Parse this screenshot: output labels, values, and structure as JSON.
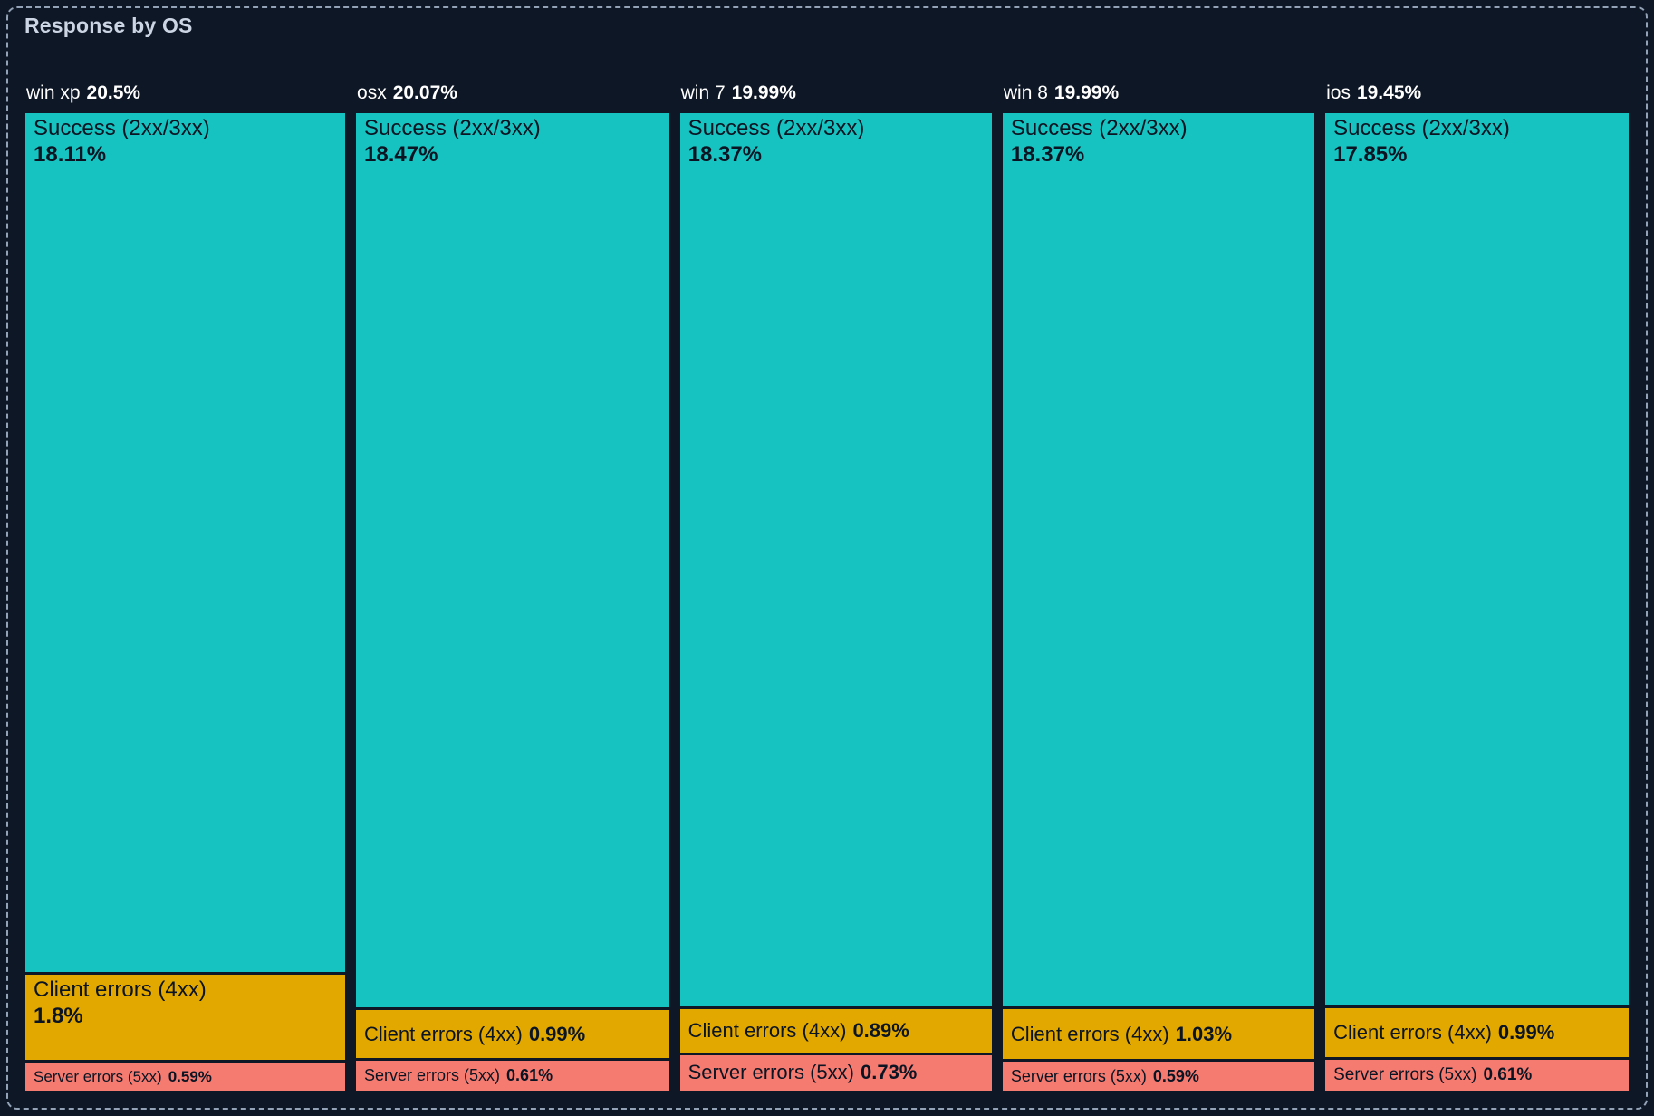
{
  "panel": {
    "title": "Response by OS"
  },
  "chart_data": {
    "type": "treemap",
    "title": "Response by OS",
    "orientation": "columns",
    "unit": "%",
    "legend": "none",
    "colors": {
      "success": "#17c3c0",
      "client_errors": "#e2a800",
      "server_errors": "#f57b71"
    },
    "columns": [
      {
        "os": "win xp",
        "share_label": "20.5%",
        "share": 20.5,
        "segments": [
          {
            "key": "success",
            "label": "Success (2xx/3xx)",
            "value_label": "18.11%",
            "value": 18.11
          },
          {
            "key": "client_errors",
            "label": "Client errors (4xx)",
            "value_label": "1.8%",
            "value": 1.8
          },
          {
            "key": "server_errors",
            "label": "Server errors (5xx)",
            "value_label": "0.59%",
            "value": 0.59
          }
        ]
      },
      {
        "os": "osx",
        "share_label": "20.07%",
        "share": 20.07,
        "segments": [
          {
            "key": "success",
            "label": "Success (2xx/3xx)",
            "value_label": "18.47%",
            "value": 18.47
          },
          {
            "key": "client_errors",
            "label": "Client errors (4xx)",
            "value_label": "0.99%",
            "value": 0.99
          },
          {
            "key": "server_errors",
            "label": "Server errors (5xx)",
            "value_label": "0.61%",
            "value": 0.61
          }
        ]
      },
      {
        "os": "win 7",
        "share_label": "19.99%",
        "share": 19.99,
        "segments": [
          {
            "key": "success",
            "label": "Success (2xx/3xx)",
            "value_label": "18.37%",
            "value": 18.37
          },
          {
            "key": "client_errors",
            "label": "Client errors (4xx)",
            "value_label": "0.89%",
            "value": 0.89
          },
          {
            "key": "server_errors",
            "label": "Server errors (5xx)",
            "value_label": "0.73%",
            "value": 0.73
          }
        ]
      },
      {
        "os": "win 8",
        "share_label": "19.99%",
        "share": 19.99,
        "segments": [
          {
            "key": "success",
            "label": "Success (2xx/3xx)",
            "value_label": "18.37%",
            "value": 18.37
          },
          {
            "key": "client_errors",
            "label": "Client errors (4xx)",
            "value_label": "1.03%",
            "value": 1.03
          },
          {
            "key": "server_errors",
            "label": "Server errors (5xx)",
            "value_label": "0.59%",
            "value": 0.59
          }
        ]
      },
      {
        "os": "ios",
        "share_label": "19.45%",
        "share": 19.45,
        "segments": [
          {
            "key": "success",
            "label": "Success (2xx/3xx)",
            "value_label": "17.85%",
            "value": 17.85
          },
          {
            "key": "client_errors",
            "label": "Client errors (4xx)",
            "value_label": "0.99%",
            "value": 0.99
          },
          {
            "key": "server_errors",
            "label": "Server errors (5xx)",
            "value_label": "0.61%",
            "value": 0.61
          }
        ]
      }
    ]
  }
}
